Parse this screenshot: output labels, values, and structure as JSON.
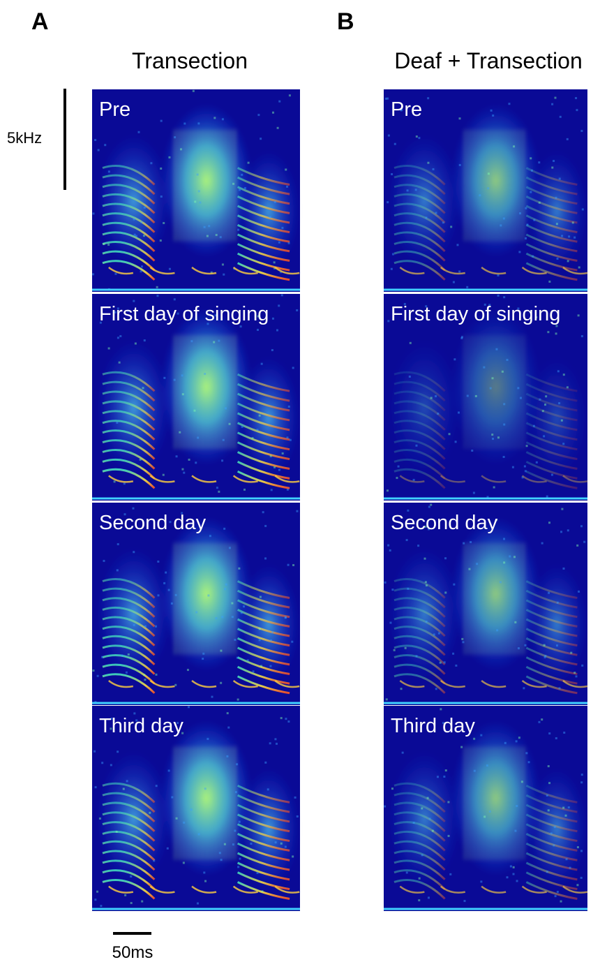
{
  "panels": [
    {
      "label": "A",
      "title": "Transection",
      "spectrograms": [
        {
          "caption": "Pre"
        },
        {
          "caption": "First day of singing"
        },
        {
          "caption": "Second day"
        },
        {
          "caption": "Third day"
        }
      ]
    },
    {
      "label": "B",
      "title": "Deaf + Transection",
      "spectrograms": [
        {
          "caption": "Pre"
        },
        {
          "caption": "First day of singing"
        },
        {
          "caption": "Second day"
        },
        {
          "caption": "Third day"
        }
      ]
    }
  ],
  "scale_bars": {
    "frequency": "5kHz",
    "time": "50ms"
  }
}
